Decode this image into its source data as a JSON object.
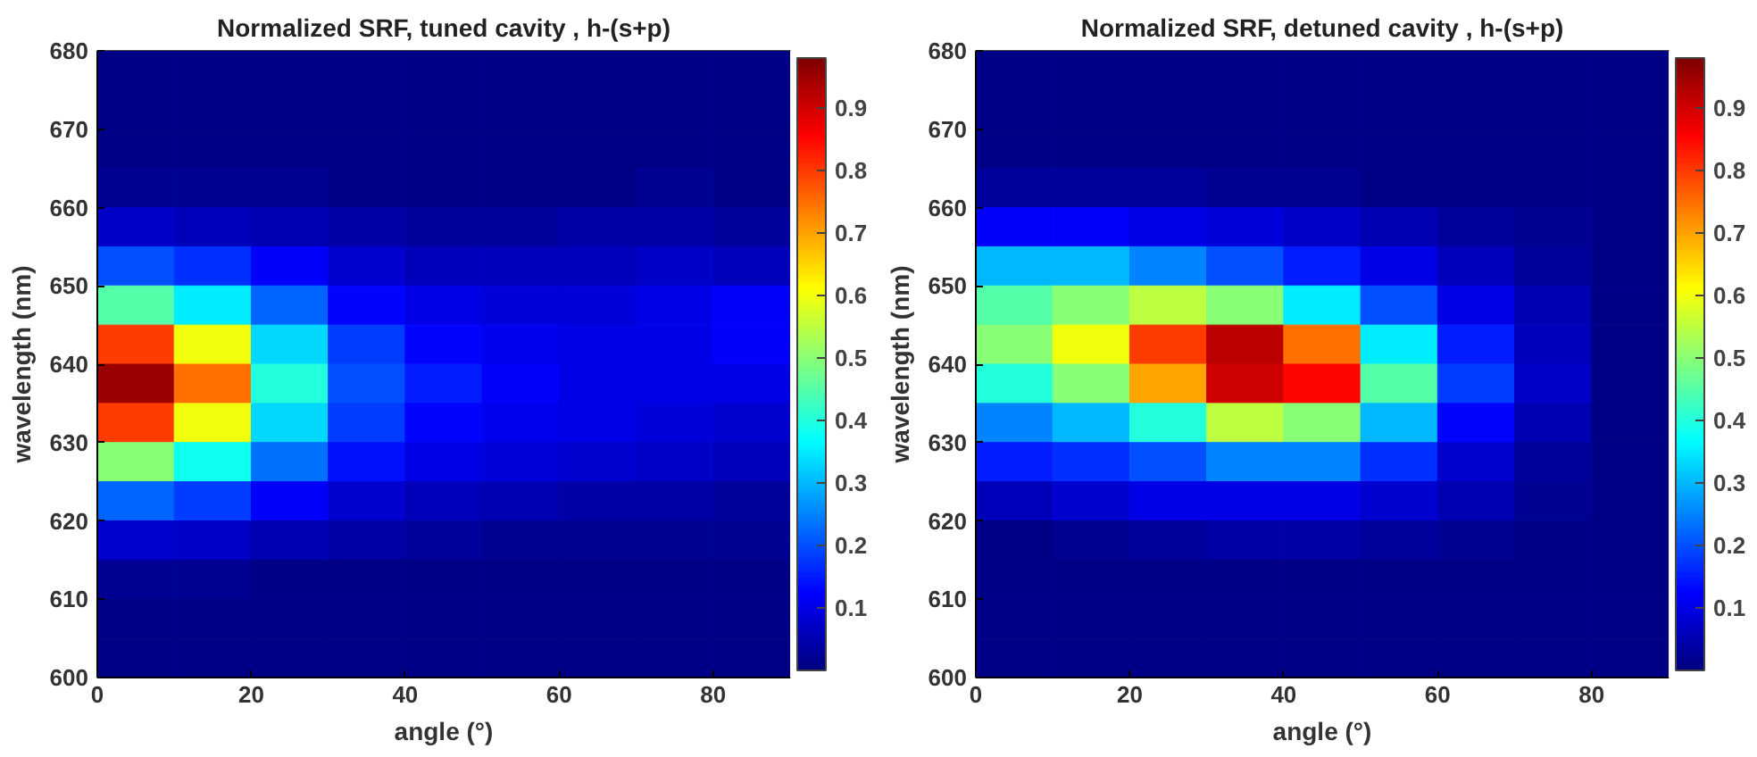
{
  "chart_data": [
    {
      "type": "heatmap",
      "title": "Normalized SRF, tuned cavity , h-(s+p)",
      "xlabel": "angle (°)",
      "ylabel": "wavelength (nm)",
      "xlim": [
        0,
        90
      ],
      "xticks": [
        0,
        20,
        40,
        60,
        80
      ],
      "ylim": [
        600,
        680
      ],
      "yticks": [
        600,
        610,
        620,
        630,
        640,
        650,
        660,
        670,
        680
      ],
      "clim": [
        0,
        0.98
      ],
      "cticks": [
        0.1,
        0.2,
        0.3,
        0.4,
        0.5,
        0.6,
        0.7,
        0.8,
        0.9
      ],
      "cells": [
        [
          0.01,
          0.01,
          0.01,
          0.01,
          0.01,
          0.01,
          0.01,
          0.01,
          0.01
        ],
        [
          0.01,
          0.01,
          0.01,
          0.01,
          0.01,
          0.01,
          0.01,
          0.01,
          0.01
        ],
        [
          0.01,
          0.01,
          0.01,
          0.01,
          0.01,
          0.01,
          0.01,
          0.01,
          0.01
        ],
        [
          0.02,
          0.02,
          0.02,
          0.01,
          0.01,
          0.01,
          0.01,
          0.02,
          0.01
        ],
        [
          0.07,
          0.06,
          0.05,
          0.04,
          0.03,
          0.03,
          0.04,
          0.04,
          0.03
        ],
        [
          0.2,
          0.17,
          0.12,
          0.08,
          0.06,
          0.06,
          0.06,
          0.07,
          0.06
        ],
        [
          0.45,
          0.35,
          0.22,
          0.13,
          0.1,
          0.09,
          0.09,
          0.1,
          0.12
        ],
        [
          0.8,
          0.6,
          0.33,
          0.18,
          0.13,
          0.11,
          0.1,
          0.1,
          0.12
        ],
        [
          0.95,
          0.75,
          0.4,
          0.2,
          0.15,
          0.12,
          0.1,
          0.1,
          0.1
        ],
        [
          0.8,
          0.6,
          0.33,
          0.18,
          0.13,
          0.11,
          0.1,
          0.09,
          0.08
        ],
        [
          0.5,
          0.38,
          0.23,
          0.14,
          0.1,
          0.09,
          0.08,
          0.07,
          0.06
        ],
        [
          0.22,
          0.18,
          0.12,
          0.08,
          0.06,
          0.05,
          0.04,
          0.04,
          0.03
        ],
        [
          0.08,
          0.07,
          0.05,
          0.04,
          0.03,
          0.02,
          0.02,
          0.02,
          0.02
        ],
        [
          0.02,
          0.02,
          0.01,
          0.01,
          0.01,
          0.01,
          0.01,
          0.01,
          0.01
        ],
        [
          0.01,
          0.01,
          0.01,
          0.01,
          0.01,
          0.01,
          0.01,
          0.01,
          0.01
        ],
        [
          0.01,
          0.01,
          0.01,
          0.01,
          0.01,
          0.01,
          0.01,
          0.01,
          0.01
        ]
      ]
    },
    {
      "type": "heatmap",
      "title": "Normalized SRF, detuned cavity , h-(s+p)",
      "xlabel": "angle (°)",
      "ylabel": "wavelength (nm)",
      "xlim": [
        0,
        90
      ],
      "xticks": [
        0,
        20,
        40,
        60,
        80
      ],
      "ylim": [
        600,
        680
      ],
      "yticks": [
        600,
        610,
        620,
        630,
        640,
        650,
        660,
        670,
        680
      ],
      "clim": [
        0,
        0.98
      ],
      "cticks": [
        0.1,
        0.2,
        0.3,
        0.4,
        0.5,
        0.6,
        0.7,
        0.8,
        0.9
      ],
      "cells": [
        [
          0.01,
          0.01,
          0.01,
          0.01,
          0.01,
          0.01,
          0.01,
          0.01,
          0.01
        ],
        [
          0.01,
          0.01,
          0.01,
          0.01,
          0.01,
          0.01,
          0.01,
          0.01,
          0.01
        ],
        [
          0.01,
          0.01,
          0.01,
          0.01,
          0.01,
          0.01,
          0.01,
          0.01,
          0.01
        ],
        [
          0.03,
          0.03,
          0.03,
          0.02,
          0.02,
          0.01,
          0.01,
          0.01,
          0.01
        ],
        [
          0.12,
          0.12,
          0.1,
          0.09,
          0.07,
          0.05,
          0.03,
          0.02,
          0.01
        ],
        [
          0.3,
          0.3,
          0.25,
          0.2,
          0.15,
          0.1,
          0.06,
          0.03,
          0.01
        ],
        [
          0.45,
          0.5,
          0.55,
          0.5,
          0.35,
          0.2,
          0.1,
          0.05,
          0.01
        ],
        [
          0.5,
          0.6,
          0.8,
          0.92,
          0.75,
          0.35,
          0.15,
          0.06,
          0.01
        ],
        [
          0.4,
          0.5,
          0.7,
          0.9,
          0.85,
          0.45,
          0.18,
          0.07,
          0.01
        ],
        [
          0.25,
          0.3,
          0.4,
          0.55,
          0.5,
          0.3,
          0.13,
          0.05,
          0.01
        ],
        [
          0.15,
          0.17,
          0.2,
          0.25,
          0.25,
          0.17,
          0.08,
          0.03,
          0.01
        ],
        [
          0.06,
          0.08,
          0.1,
          0.1,
          0.1,
          0.08,
          0.05,
          0.02,
          0.01
        ],
        [
          0.01,
          0.02,
          0.03,
          0.04,
          0.04,
          0.03,
          0.02,
          0.01,
          0.01
        ],
        [
          0.01,
          0.01,
          0.01,
          0.01,
          0.01,
          0.01,
          0.01,
          0.01,
          0.01
        ],
        [
          0.01,
          0.01,
          0.01,
          0.01,
          0.01,
          0.01,
          0.01,
          0.01,
          0.01
        ],
        [
          0.01,
          0.01,
          0.01,
          0.01,
          0.01,
          0.01,
          0.01,
          0.01,
          0.01
        ]
      ]
    }
  ]
}
